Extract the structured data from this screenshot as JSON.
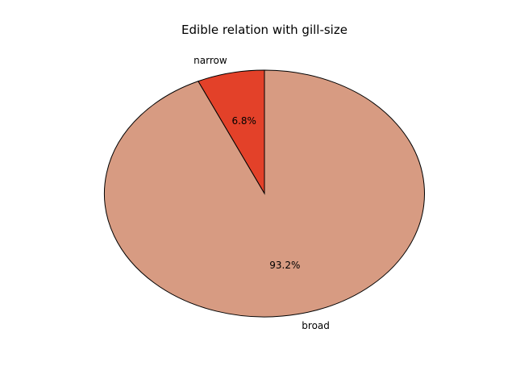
{
  "chart_data": {
    "type": "pie",
    "title": "Edible relation with gill-size",
    "slices": [
      {
        "label": "narrow",
        "value": 6.8,
        "pct_label": "6.8%",
        "color": "#e34129"
      },
      {
        "label": "broad",
        "value": 93.2,
        "pct_label": "93.2%",
        "color": "#d79b82"
      }
    ],
    "start_angle_deg": 90,
    "direction": "counterclockwise",
    "edge_color": "#000000"
  }
}
